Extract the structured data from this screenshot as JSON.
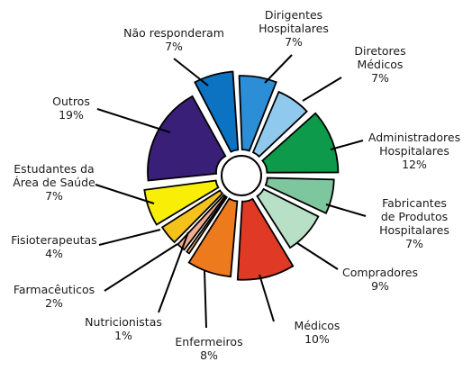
{
  "chart_data": {
    "type": "pie",
    "style": "exploded-donut",
    "start_angle_deg_clockwise_from_top": -3,
    "slices": [
      {
        "label": "Dirigentes\nHospitalares",
        "value_text": "7%",
        "value": 7,
        "color": "#2b8ed6"
      },
      {
        "label": "Diretores\nMédicos",
        "value_text": "7%",
        "value": 7,
        "color": "#8fcaee"
      },
      {
        "label": "Administradores\nHospitalares",
        "value_text": "12%",
        "value": 12,
        "color": "#0d9a4a"
      },
      {
        "label": "Fabricantes\nde Produtos\nHospitalares",
        "value_text": "7%",
        "value": 7,
        "color": "#7ec69d"
      },
      {
        "label": "Compradores",
        "value_text": "9%",
        "value": 9,
        "color": "#b7e0c6"
      },
      {
        "label": "Médicos",
        "value_text": "10%",
        "value": 10,
        "color": "#e03a27"
      },
      {
        "label": "Enfermeiros",
        "value_text": "8%",
        "value": 8,
        "color": "#ee7a1e"
      },
      {
        "label": "Nutricionistas",
        "value_text": "1%",
        "value": 1,
        "color": "#f4c070"
      },
      {
        "label": "Farmacêuticos",
        "value_text": "2%",
        "value": 2,
        "color": "#f2ad8e"
      },
      {
        "label": "Fisioterapeutas",
        "value_text": "4%",
        "value": 4,
        "color": "#f5c21c"
      },
      {
        "label": "Estudantes da\nÁrea de Saúde",
        "value_text": "7%",
        "value": 7,
        "color": "#f8ee06"
      },
      {
        "label": "Outros",
        "value_text": "19%",
        "value": 19,
        "color": "#3a1f78"
      },
      {
        "label": "Não responderam",
        "value_text": "7%",
        "value": 7,
        "color": "#0b73c1"
      }
    ]
  }
}
